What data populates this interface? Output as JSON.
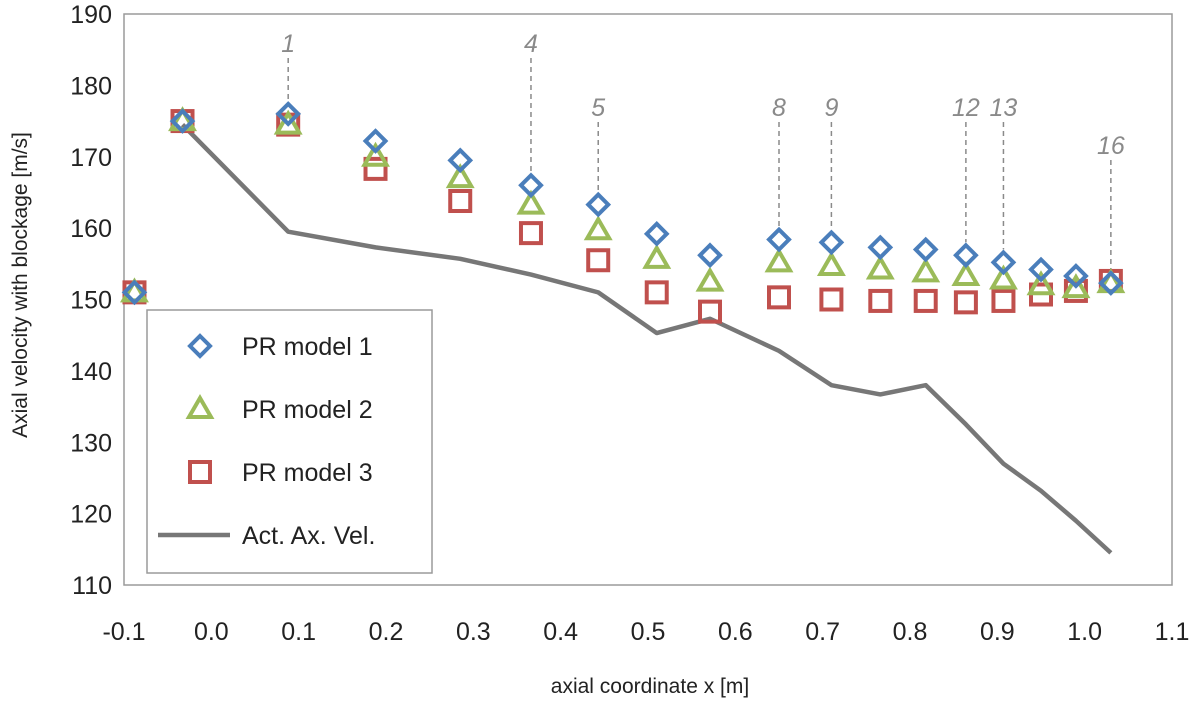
{
  "chart_data": {
    "type": "scatter",
    "title": "",
    "xlabel": "axial coordinate x [m]",
    "ylabel": "Axial velocity with blockage [m/s]",
    "xlim": [
      -0.1,
      1.1
    ],
    "ylim": [
      110,
      190
    ],
    "x_ticks": [
      -0.1,
      0.0,
      0.1,
      0.2,
      0.3,
      0.4,
      0.5,
      0.6,
      0.7,
      0.8,
      0.9,
      1.0,
      1.1
    ],
    "x_tick_labels": [
      "-0.1",
      "0.0",
      "0.1",
      "0.2",
      "0.3",
      "0.4",
      "0.5",
      "0.6",
      "0.7",
      "0.8",
      "0.9",
      "1.0",
      "1.1"
    ],
    "y_ticks": [
      110,
      120,
      130,
      140,
      150,
      160,
      170,
      180,
      190
    ],
    "y_tick_labels": [
      "110",
      "120",
      "130",
      "140",
      "150",
      "160",
      "170",
      "180",
      "190"
    ],
    "grid": false,
    "legend_position": "bottom-left",
    "x": [
      -0.088,
      -0.033,
      0.088,
      0.188,
      0.285,
      0.366,
      0.443,
      0.51,
      0.571,
      0.65,
      0.71,
      0.766,
      0.818,
      0.864,
      0.907,
      0.95,
      0.99,
      1.03
    ],
    "series": [
      {
        "name": "PR model 1",
        "marker": "diamond",
        "color": "#4a7ebb",
        "values": [
          151,
          175,
          176,
          172.2,
          169.5,
          166,
          163.3,
          159.2,
          156.2,
          158.4,
          158,
          157.3,
          157,
          156.2,
          155.2,
          154.2,
          153.3,
          152.3
        ]
      },
      {
        "name": "PR model 2",
        "marker": "triangle",
        "color": "#9bbb59",
        "values": [
          151,
          175,
          174.5,
          170,
          167,
          163.3,
          159.7,
          155.7,
          152.5,
          155.2,
          154.7,
          154.2,
          153.8,
          153.3,
          152.8,
          152,
          151.6,
          152.3
        ]
      },
      {
        "name": "PR model 3",
        "marker": "square",
        "color": "#c0504d",
        "values": [
          151,
          175,
          174.5,
          168.3,
          163.8,
          159.3,
          155.5,
          151,
          148.3,
          150.3,
          150,
          149.8,
          149.8,
          149.6,
          149.8,
          150.7,
          151.2,
          152.6
        ]
      },
      {
        "name": "Act. Ax. Vel.",
        "marker": "line",
        "color": "#777777",
        "x": [
          -0.033,
          0.088,
          0.188,
          0.285,
          0.366,
          0.443,
          0.51,
          0.571,
          0.65,
          0.71,
          0.766,
          0.818,
          0.864,
          0.907,
          0.95,
          0.99,
          1.03
        ],
        "values": [
          174.5,
          159.5,
          157.3,
          155.7,
          153.5,
          151,
          145.3,
          147.3,
          142.8,
          138,
          136.7,
          138,
          132.5,
          127,
          123.2,
          119,
          114.5
        ]
      }
    ],
    "annotations": [
      {
        "label": "1",
        "x": 0.088,
        "line_bottom": 176
      },
      {
        "label": "4",
        "x": 0.366,
        "line_bottom": 166
      },
      {
        "label": "5",
        "x": 0.443,
        "line_bottom": 163.3
      },
      {
        "label": "8",
        "x": 0.65,
        "line_bottom": 158.4
      },
      {
        "label": "9",
        "x": 0.71,
        "line_bottom": 158
      },
      {
        "label": "12",
        "x": 0.864,
        "line_bottom": 156.2
      },
      {
        "label": "13",
        "x": 0.907,
        "line_bottom": 155.2
      },
      {
        "label": "16",
        "x": 1.03,
        "line_bottom": 152.3
      }
    ]
  }
}
